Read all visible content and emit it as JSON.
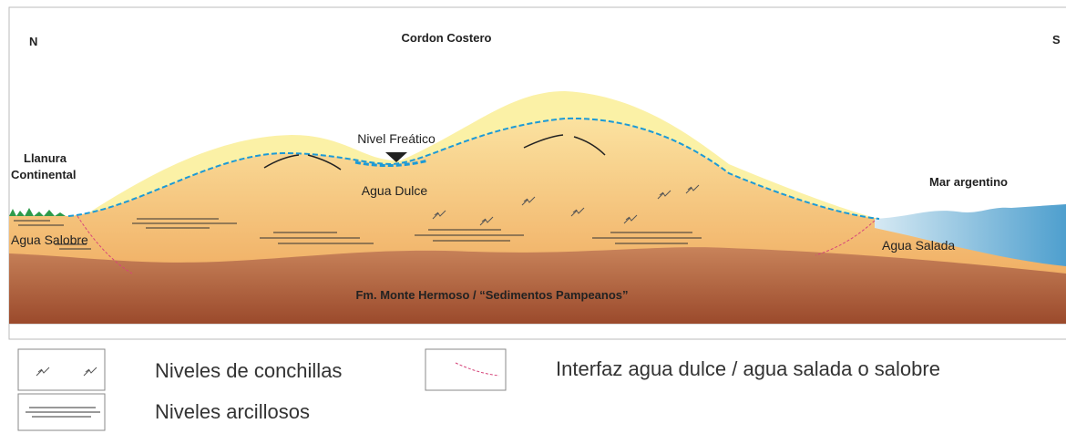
{
  "section": {
    "north": "N",
    "title": "Cordon Costero",
    "south": "S",
    "plain": [
      "Llanura",
      "Continental"
    ],
    "water_table": "Nivel Freático",
    "fresh_water": "Agua Dulce",
    "sea": "Mar argentino",
    "brackish_water": "Agua Salobre",
    "salt_water": "Agua Salada",
    "formation": "Fm. Monte Hermoso / “Sedimentos Pampeanos”"
  },
  "legend": {
    "shells": "Niveles de conchillas",
    "interface": "Interfaz agua dulce / agua salada o salobre",
    "clay": "Niveles arcillosos"
  }
}
